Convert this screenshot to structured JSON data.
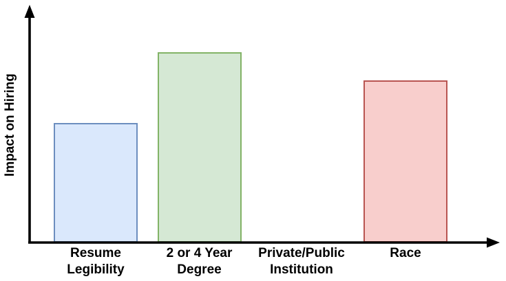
{
  "chart_data": {
    "type": "bar",
    "title": "",
    "xlabel": "",
    "ylabel": "Impact on Hiring",
    "ylim": [
      0,
      1
    ],
    "grid": false,
    "legend": false,
    "axis_color": "#000000",
    "text_color": "#000000",
    "background_color": "#ffffff",
    "categories": [
      "Resume\nLegibility",
      "2 or 4 Year\nDegree",
      "Private/Public\nInstitution",
      "Race"
    ],
    "values": [
      0.51,
      0.81,
      0,
      0.69
    ],
    "bar_colors": [
      {
        "fill": "#dae8fc",
        "stroke": "#6c8ebf"
      },
      {
        "fill": "#d5e8d4",
        "stroke": "#82b366"
      },
      {
        "fill": null,
        "stroke": null
      },
      {
        "fill": "#f8cecc",
        "stroke": "#b85450"
      }
    ]
  }
}
